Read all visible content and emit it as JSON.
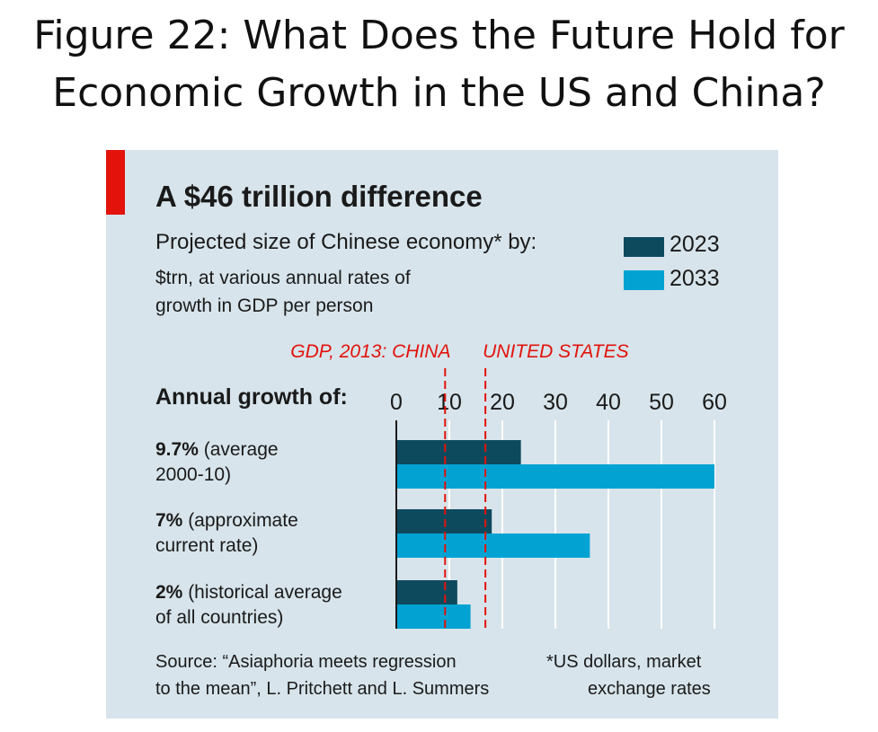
{
  "page": {
    "title_line1": "Figure 22: What Does the Future Hold for",
    "title_line2": "Economic Growth in the US and China?"
  },
  "colors": {
    "panel_bg": "#d7e4eb",
    "accent_red": "#e3120b",
    "series_2023": "#0e4a5e",
    "series_2033": "#02a3d3",
    "grid": "#ffffff"
  },
  "chart_data": {
    "type": "bar",
    "orientation": "horizontal",
    "title": "A $46 trillion difference",
    "subtitle": "Projected size of Chinese economy* by:",
    "unit_note_line1": "$trn, at various annual rates of",
    "unit_note_line2": "growth in GDP per person",
    "axis_heading": "Annual growth of:",
    "x_ticks": [
      0,
      10,
      20,
      30,
      40,
      50,
      60
    ],
    "xlim": [
      0,
      60
    ],
    "grid": true,
    "legend_placement": "top-right",
    "categories": [
      {
        "bold": "9.7%",
        "line1": " (average",
        "line2": "2000-10)"
      },
      {
        "bold": "7%",
        "line1": " (approximate",
        "line2": "current rate)"
      },
      {
        "bold": "2%",
        "line1": " (historical average",
        "line2": "of all countries)"
      }
    ],
    "series": [
      {
        "name": "2023",
        "values": [
          23.5,
          18,
          11.5
        ]
      },
      {
        "name": "2033",
        "values": [
          60,
          36.5,
          14
        ]
      }
    ],
    "reference_lines": [
      {
        "label": "GDP, 2013: CHINA",
        "value": 9.2
      },
      {
        "label": "UNITED STATES",
        "value": 16.8
      }
    ],
    "source_line1": "Source: “Asiaphoria meets regression",
    "source_line2": "to the mean”, L. Pritchett and L. Summers",
    "footnote_line1": "*US dollars, market",
    "footnote_line2": "exchange rates"
  }
}
